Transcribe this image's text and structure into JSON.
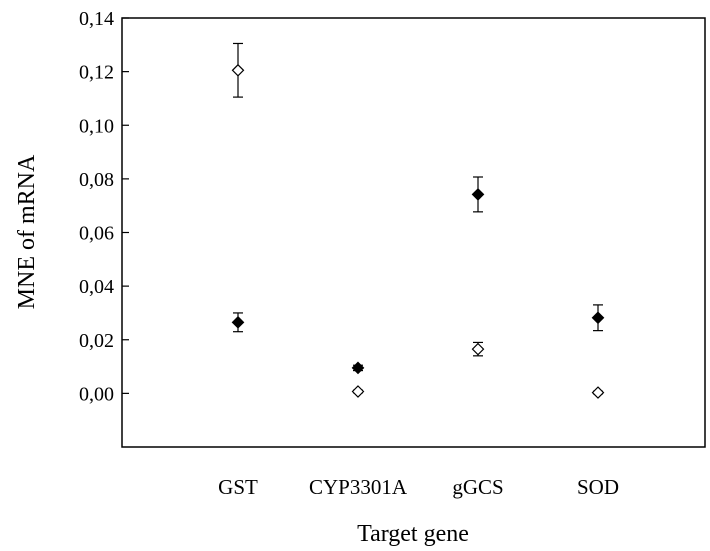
{
  "chart_data": {
    "type": "scatter",
    "xlabel": "Target gene",
    "ylabel": "MNE of mRNA",
    "categories": [
      "GST",
      "CYP3301A",
      "gGCS",
      "SOD"
    ],
    "ylim": [
      -0.02,
      0.14
    ],
    "yticks": [
      "0,00",
      "0,02",
      "0,04",
      "0,06",
      "0,08",
      "0,10",
      "0,12",
      "0,14"
    ],
    "grid": false,
    "series": [
      {
        "marker": "filled-diamond",
        "color": "#000000",
        "values": [
          0.0265,
          0.0095,
          0.0742,
          0.0282
        ],
        "errors": [
          0.0035,
          0.001,
          0.0065,
          0.0048
        ]
      },
      {
        "marker": "open-diamond",
        "color": "#000000",
        "values": [
          0.1205,
          0.0007,
          0.0165,
          0.0003
        ],
        "errors": [
          0.01,
          0.0005,
          0.0025,
          0.0005
        ]
      }
    ]
  }
}
